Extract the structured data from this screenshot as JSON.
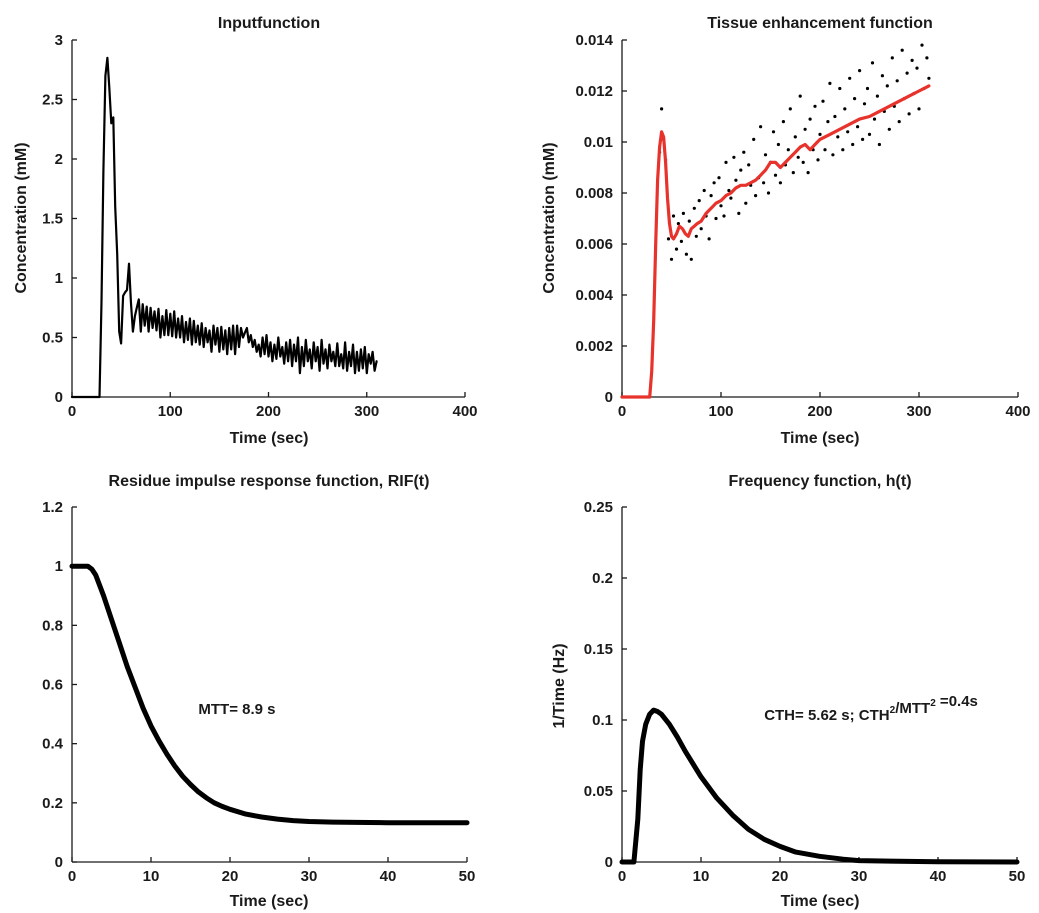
{
  "chart_data": [
    {
      "id": "p1",
      "type": "line",
      "title": "Inputfunction",
      "xlabel": "Time (sec)",
      "ylabel": "Concentration (mM)",
      "xlim": [
        0,
        400
      ],
      "ylim": [
        0,
        3
      ],
      "xticks": [
        0,
        100,
        200,
        300,
        400
      ],
      "yticks": [
        0,
        0.5,
        1,
        1.5,
        2,
        2.5,
        3
      ],
      "ytick_labels": [
        "0",
        "0.5",
        "1",
        "1.5",
        "2",
        "2.5",
        "3"
      ],
      "grid": false,
      "series": [
        {
          "color": "#000000",
          "width": 2.2,
          "x": [
            0,
            28,
            30,
            32,
            34,
            36,
            38,
            40,
            42,
            44,
            46,
            48,
            50,
            52,
            54,
            56,
            58,
            60,
            62,
            64,
            66,
            68,
            70,
            72,
            74,
            76,
            78,
            80,
            82,
            84,
            86,
            88,
            90,
            92,
            94,
            96,
            98,
            100,
            102,
            104,
            106,
            108,
            110,
            112,
            114,
            116,
            118,
            120,
            122,
            124,
            126,
            128,
            130,
            132,
            134,
            136,
            138,
            140,
            142,
            144,
            146,
            148,
            150,
            152,
            154,
            156,
            158,
            160,
            162,
            164,
            166,
            168,
            170,
            172,
            174,
            176,
            178,
            180,
            182,
            184,
            186,
            188,
            190,
            192,
            194,
            196,
            198,
            200,
            202,
            204,
            206,
            208,
            210,
            212,
            214,
            216,
            218,
            220,
            222,
            224,
            226,
            228,
            230,
            232,
            234,
            236,
            238,
            240,
            242,
            244,
            246,
            248,
            250,
            252,
            254,
            256,
            258,
            260,
            262,
            264,
            266,
            268,
            270,
            272,
            274,
            276,
            278,
            280,
            282,
            284,
            286,
            288,
            290,
            292,
            294,
            296,
            298,
            300,
            302,
            304,
            306,
            308,
            310
          ],
          "y": [
            0,
            0,
            0.8,
            1.9,
            2.7,
            2.85,
            2.6,
            2.3,
            2.35,
            1.6,
            1.2,
            0.55,
            0.45,
            0.85,
            0.88,
            0.9,
            1.12,
            0.8,
            0.55,
            0.68,
            0.75,
            0.82,
            0.55,
            0.78,
            0.6,
            0.76,
            0.55,
            0.75,
            0.58,
            0.72,
            0.56,
            0.74,
            0.5,
            0.68,
            0.52,
            0.73,
            0.52,
            0.7,
            0.51,
            0.72,
            0.5,
            0.66,
            0.5,
            0.68,
            0.46,
            0.63,
            0.48,
            0.66,
            0.44,
            0.64,
            0.46,
            0.6,
            0.44,
            0.62,
            0.42,
            0.58,
            0.46,
            0.56,
            0.38,
            0.6,
            0.44,
            0.58,
            0.38,
            0.59,
            0.4,
            0.56,
            0.36,
            0.58,
            0.4,
            0.6,
            0.36,
            0.6,
            0.42,
            0.58,
            0.5,
            0.54,
            0.58,
            0.46,
            0.52,
            0.42,
            0.48,
            0.38,
            0.44,
            0.34,
            0.5,
            0.36,
            0.52,
            0.34,
            0.46,
            0.3,
            0.44,
            0.32,
            0.5,
            0.34,
            0.42,
            0.28,
            0.46,
            0.3,
            0.48,
            0.26,
            0.44,
            0.3,
            0.5,
            0.2,
            0.42,
            0.26,
            0.48,
            0.3,
            0.4,
            0.24,
            0.46,
            0.3,
            0.42,
            0.22,
            0.48,
            0.28,
            0.4,
            0.24,
            0.44,
            0.3,
            0.38,
            0.26,
            0.45,
            0.26,
            0.36,
            0.24,
            0.46,
            0.22,
            0.38,
            0.26,
            0.44,
            0.2,
            0.38,
            0.22,
            0.4,
            0.24,
            0.42,
            0.2,
            0.36,
            0.28,
            0.38,
            0.22,
            0.3
          ]
        }
      ]
    },
    {
      "id": "p2",
      "type": "line",
      "title": "Tissue enhancement function",
      "xlabel": "Time (sec)",
      "ylabel": "Concentration (mM)",
      "xlim": [
        0,
        400
      ],
      "ylim": [
        0,
        0.014
      ],
      "xticks": [
        0,
        100,
        200,
        300,
        400
      ],
      "yticks": [
        0,
        0.002,
        0.004,
        0.006,
        0.008,
        0.01,
        0.012,
        0.014
      ],
      "ytick_labels": [
        "0",
        "0.002",
        "0.004",
        "0.006",
        "0.008",
        "0.01",
        "0.012",
        "0.014"
      ],
      "grid": false,
      "series": [
        {
          "color": "#e8322c",
          "width": 3.2,
          "x": [
            0,
            28,
            30,
            32,
            34,
            36,
            38,
            40,
            42,
            44,
            46,
            48,
            50,
            52,
            55,
            58,
            61,
            64,
            67,
            70,
            73,
            76,
            80,
            85,
            90,
            95,
            100,
            105,
            110,
            115,
            120,
            125,
            130,
            135,
            140,
            145,
            150,
            155,
            160,
            165,
            170,
            175,
            180,
            185,
            190,
            195,
            200,
            210,
            220,
            230,
            240,
            250,
            260,
            270,
            280,
            290,
            300,
            310
          ],
          "y": [
            0,
            0,
            0.001,
            0.003,
            0.006,
            0.0085,
            0.0098,
            0.0104,
            0.0102,
            0.0092,
            0.0078,
            0.0068,
            0.0063,
            0.0062,
            0.0064,
            0.0067,
            0.0066,
            0.0064,
            0.0063,
            0.0066,
            0.0067,
            0.0068,
            0.0069,
            0.0072,
            0.0074,
            0.0076,
            0.0077,
            0.0079,
            0.008,
            0.0082,
            0.0083,
            0.0083,
            0.0084,
            0.0085,
            0.0087,
            0.0089,
            0.0092,
            0.0092,
            0.009,
            0.0092,
            0.0094,
            0.0096,
            0.0098,
            0.0099,
            0.0097,
            0.0099,
            0.0101,
            0.0103,
            0.0105,
            0.0107,
            0.0109,
            0.011,
            0.0112,
            0.0114,
            0.0116,
            0.0118,
            0.012,
            0.0122
          ]
        }
      ],
      "scatter": {
        "color": "#000000",
        "x": [
          38,
          40,
          42,
          44,
          47,
          50,
          52,
          55,
          57,
          60,
          62,
          65,
          68,
          70,
          73,
          75,
          78,
          80,
          83,
          85,
          88,
          90,
          93,
          95,
          98,
          100,
          103,
          105,
          108,
          110,
          113,
          115,
          118,
          120,
          123,
          125,
          128,
          130,
          133,
          135,
          138,
          140,
          143,
          145,
          148,
          150,
          153,
          155,
          158,
          160,
          163,
          165,
          168,
          170,
          173,
          175,
          178,
          180,
          183,
          185,
          188,
          190,
          193,
          195,
          198,
          200,
          203,
          205,
          208,
          210,
          213,
          215,
          218,
          220,
          223,
          225,
          228,
          230,
          233,
          235,
          238,
          240,
          243,
          245,
          248,
          250,
          253,
          255,
          258,
          260,
          263,
          265,
          268,
          270,
          273,
          275,
          278,
          280,
          283,
          285,
          288,
          290,
          293,
          295,
          298,
          300,
          303,
          305,
          308,
          310
        ],
        "y": [
          0.0096,
          0.0113,
          0.0101,
          0.0093,
          0.0062,
          0.0054,
          0.0071,
          0.0058,
          0.0068,
          0.0061,
          0.0072,
          0.0056,
          0.0069,
          0.0054,
          0.0074,
          0.0063,
          0.0077,
          0.0066,
          0.0081,
          0.0071,
          0.0062,
          0.0079,
          0.0084,
          0.007,
          0.0086,
          0.0075,
          0.0071,
          0.0092,
          0.0081,
          0.0078,
          0.0094,
          0.0085,
          0.0072,
          0.0089,
          0.0096,
          0.0076,
          0.0091,
          0.0083,
          0.0101,
          0.0079,
          0.0086,
          0.0106,
          0.0084,
          0.0095,
          0.008,
          0.0092,
          0.0104,
          0.0087,
          0.0099,
          0.0084,
          0.0108,
          0.0091,
          0.0097,
          0.0113,
          0.0088,
          0.0102,
          0.0094,
          0.0118,
          0.0092,
          0.0105,
          0.0088,
          0.0109,
          0.0097,
          0.0114,
          0.0093,
          0.0103,
          0.0116,
          0.0097,
          0.0108,
          0.0123,
          0.0095,
          0.011,
          0.0102,
          0.0121,
          0.0097,
          0.0113,
          0.0104,
          0.0125,
          0.0099,
          0.0117,
          0.0106,
          0.0128,
          0.0101,
          0.0115,
          0.0121,
          0.0103,
          0.0131,
          0.0109,
          0.0118,
          0.0099,
          0.0126,
          0.0112,
          0.0122,
          0.0105,
          0.0133,
          0.0114,
          0.0124,
          0.0108,
          0.0136,
          0.0117,
          0.0127,
          0.0111,
          0.0132,
          0.0119,
          0.0129,
          0.0113,
          0.0138,
          0.0121,
          0.0133,
          0.0125
        ]
      }
    },
    {
      "id": "p3",
      "type": "line",
      "title": "Residue impulse response function, RIF(t)",
      "xlabel": "Time (sec)",
      "ylabel": "",
      "xlim": [
        0,
        50
      ],
      "ylim": [
        0,
        1.2
      ],
      "xticks": [
        0,
        10,
        20,
        30,
        40,
        50
      ],
      "yticks": [
        0,
        0.2,
        0.4,
        0.6,
        0.8,
        1,
        1.2
      ],
      "ytick_labels": [
        "0",
        "0.2",
        "0.4",
        "0.6",
        "0.8",
        "1",
        "1.2"
      ],
      "grid": false,
      "annotation": {
        "text": "MTT= 8.9 s",
        "x": 16,
        "y": 0.5
      },
      "series": [
        {
          "color": "#000000",
          "width": 5,
          "x": [
            0,
            1,
            2,
            2.5,
            3,
            4,
            5,
            6,
            7,
            8,
            9,
            10,
            11,
            12,
            13,
            14,
            15,
            16,
            17,
            18,
            19,
            20,
            22,
            24,
            26,
            28,
            30,
            33,
            36,
            40,
            45,
            50
          ],
          "y": [
            1,
            1,
            1,
            0.99,
            0.97,
            0.9,
            0.82,
            0.74,
            0.66,
            0.59,
            0.52,
            0.46,
            0.41,
            0.365,
            0.325,
            0.29,
            0.262,
            0.237,
            0.217,
            0.2,
            0.188,
            0.178,
            0.162,
            0.152,
            0.145,
            0.14,
            0.137,
            0.135,
            0.134,
            0.133,
            0.133,
            0.133
          ]
        }
      ]
    },
    {
      "id": "p4",
      "type": "line",
      "title": "Frequency function, h(t)",
      "xlabel": "Time (sec)",
      "ylabel": "1/Time (Hz)",
      "xlim": [
        0,
        50
      ],
      "ylim": [
        0,
        0.25
      ],
      "xticks": [
        0,
        10,
        20,
        30,
        40,
        50
      ],
      "yticks": [
        0,
        0.05,
        0.1,
        0.15,
        0.2,
        0.25
      ],
      "ytick_labels": [
        "0",
        "0.05",
        "0.1",
        "0.15",
        "0.2",
        "0.25"
      ],
      "grid": false,
      "annotation": {
        "x": 18,
        "y": 0.1,
        "parts": [
          {
            "text": "CTH= 5.62 s; CTH"
          },
          {
            "text": "2",
            "sup": true
          },
          {
            "text": "/MTT"
          },
          {
            "text": "2",
            "sup": true
          },
          {
            "text": " =0.4s"
          }
        ]
      },
      "series": [
        {
          "color": "#000000",
          "width": 5,
          "x": [
            0,
            1.5,
            2,
            2.3,
            2.6,
            3,
            3.5,
            4,
            4.5,
            5,
            6,
            7,
            8,
            9,
            10,
            12,
            14,
            16,
            18,
            20,
            22,
            25,
            28,
            30,
            35,
            40,
            45,
            50
          ],
          "y": [
            0,
            0,
            0.03,
            0.065,
            0.085,
            0.097,
            0.104,
            0.107,
            0.106,
            0.104,
            0.097,
            0.088,
            0.078,
            0.069,
            0.06,
            0.045,
            0.033,
            0.023,
            0.016,
            0.011,
            0.007,
            0.004,
            0.002,
            0.001,
            0.0005,
            0.0002,
            0.0001,
            0
          ]
        }
      ]
    }
  ]
}
